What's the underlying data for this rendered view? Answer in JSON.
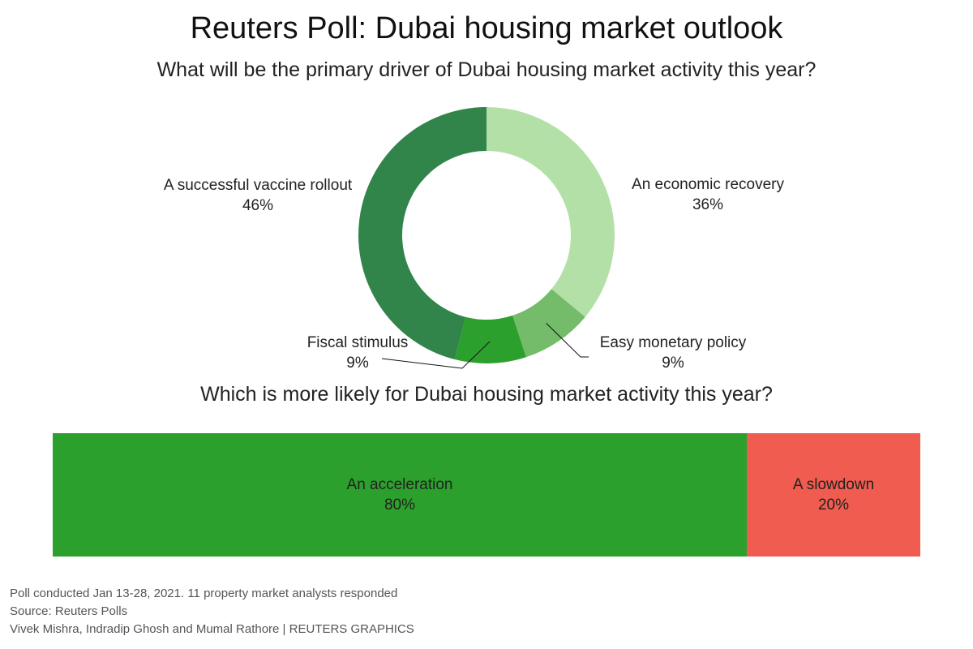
{
  "title": "Reuters Poll: Dubai housing market outlook",
  "chart_data": [
    {
      "type": "pie",
      "variant": "donut",
      "title": "What will be the primary driver of Dubai housing market activity this year?",
      "start": "top",
      "direction": "clockwise",
      "slices": [
        {
          "label": "An economic recovery",
          "value": 36,
          "display": "36%",
          "color": "#b3e0a6"
        },
        {
          "label": "Easy monetary policy",
          "value": 9,
          "display": "9%",
          "color": "#74bb6a"
        },
        {
          "label": "Fiscal stimulus",
          "value": 9,
          "display": "9%",
          "color": "#2ca02c"
        },
        {
          "label": "A successful vaccine rollout",
          "value": 46,
          "display": "46%",
          "color": "#31844a"
        }
      ]
    },
    {
      "type": "bar",
      "variant": "stacked-100-horizontal",
      "title": "Which is more likely for Dubai housing market activity this year?",
      "segments": [
        {
          "label": "An acceleration",
          "value": 80,
          "display": "80%",
          "color": "#2ca02c"
        },
        {
          "label": "A slowdown",
          "value": 20,
          "display": "20%",
          "color": "#f05c4f"
        }
      ]
    }
  ],
  "footer": {
    "note": "Poll conducted Jan 13-28, 2021. 11 property market analysts responded",
    "source": "Source: Reuters Polls",
    "credit": "Vivek Mishra, Indradip Ghosh and Mumal Rathore | REUTERS GRAPHICS"
  }
}
